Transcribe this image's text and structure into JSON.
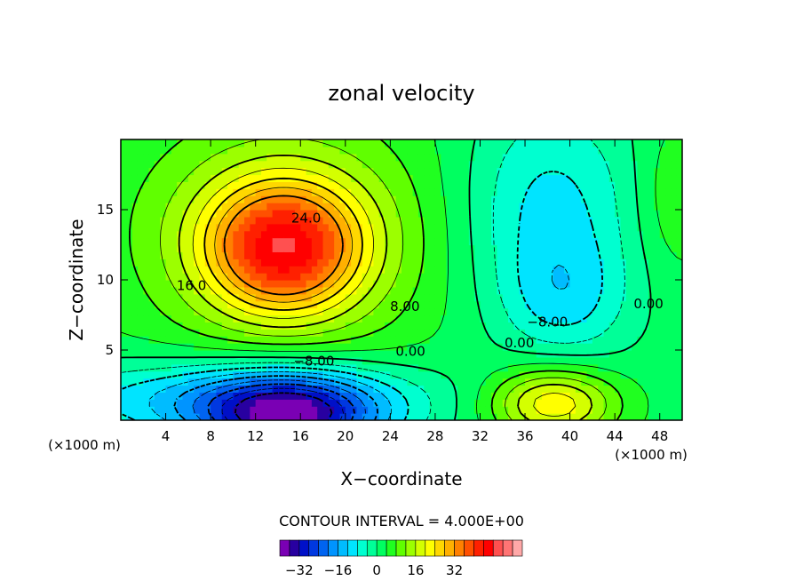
{
  "chart_data": {
    "type": "heatmap",
    "title": "zonal velocity",
    "xlabel": "X−coordinate",
    "ylabel": "Z−coordinate",
    "x_unit_left": "(×1000 m)",
    "x_unit_right": "(×1000 m)",
    "xlim": [
      0,
      50
    ],
    "ylim": [
      0,
      20
    ],
    "x_ticks": [
      4,
      8,
      12,
      16,
      20,
      24,
      28,
      32,
      36,
      40,
      44,
      48
    ],
    "y_ticks": [
      5,
      10,
      15
    ],
    "contour_interval_text": "CONTOUR INTERVAL = 4.000E+00",
    "contour_labels": [
      {
        "text": "24.0",
        "x": 16.5,
        "y": 14.4
      },
      {
        "text": "16.0",
        "x": 6.3,
        "y": 9.6
      },
      {
        "text": "8.00",
        "x": 25.3,
        "y": 8.1
      },
      {
        "text": "0.00",
        "x": 25.8,
        "y": 4.9
      },
      {
        "text": "−8.00",
        "x": 17.2,
        "y": 4.2
      },
      {
        "text": "−8.00",
        "x": 38.0,
        "y": 7.0
      },
      {
        "text": "0.00",
        "x": 35.5,
        "y": 5.5
      },
      {
        "text": "0.00",
        "x": 47.0,
        "y": 8.3
      }
    ],
    "field_features": [
      {
        "x": 14.5,
        "y": 12.3,
        "value": 33,
        "sx": 4.8,
        "sy": 3.2
      },
      {
        "x": 14.5,
        "y": 13.5,
        "value": 14,
        "sx": 10.0,
        "sy": 6.5
      },
      {
        "x": 15.0,
        "y": 0.2,
        "value": -32,
        "sx": 5.5,
        "sy": 2.1
      },
      {
        "x": 10.0,
        "y": 1.5,
        "value": -16,
        "sx": 12.0,
        "sy": 2.0
      },
      {
        "x": 38.5,
        "y": 1.2,
        "value": 22,
        "sx": 4.0,
        "sy": 1.8
      },
      {
        "x": 38.0,
        "y": 15.0,
        "value": -12,
        "sx": 5.5,
        "sy": 5.5
      },
      {
        "x": 39.5,
        "y": 8.5,
        "value": -8,
        "sx": 4.0,
        "sy": 3.0
      },
      {
        "x": 49.5,
        "y": 16.0,
        "value": 6,
        "sx": 2.5,
        "sy": 4.0
      }
    ],
    "colorbar": {
      "ticks": [
        -32,
        -16,
        0,
        16,
        32
      ],
      "tick_labels": [
        "−32",
        "−16",
        "0",
        "16",
        "32"
      ],
      "colors": [
        "#7a00b4",
        "#2800a0",
        "#0010c8",
        "#0038e0",
        "#0064f0",
        "#0094ff",
        "#00bcff",
        "#00e4ff",
        "#00ffd0",
        "#00ff98",
        "#00ff60",
        "#20ff20",
        "#60ff00",
        "#9cff00",
        "#d4ff00",
        "#ffff00",
        "#ffd800",
        "#ffb000",
        "#ff8000",
        "#ff5000",
        "#ff2000",
        "#ff0000",
        "#ff5050",
        "#ff7474",
        "#ffa8a8"
      ]
    }
  }
}
